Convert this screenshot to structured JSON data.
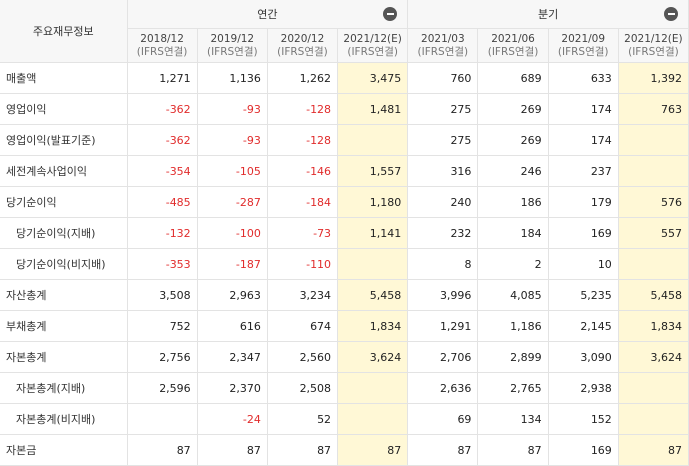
{
  "table": {
    "corner_label": "주요재무정보",
    "groups": [
      {
        "label": "연간",
        "collapse_icon": "minus-circle-icon"
      },
      {
        "label": "분기",
        "collapse_icon": "minus-circle-icon"
      }
    ],
    "periods": [
      {
        "date": "2018/12",
        "basis": "(IFRS연결)"
      },
      {
        "date": "2019/12",
        "basis": "(IFRS연결)"
      },
      {
        "date": "2020/12",
        "basis": "(IFRS연결)"
      },
      {
        "date": "2021/12(E)",
        "basis": "(IFRS연결)"
      },
      {
        "date": "2021/03",
        "basis": "(IFRS연결)"
      },
      {
        "date": "2021/06",
        "basis": "(IFRS연결)"
      },
      {
        "date": "2021/09",
        "basis": "(IFRS연결)"
      },
      {
        "date": "2021/12(E)",
        "basis": "(IFRS연결)"
      }
    ],
    "rows": [
      {
        "label": "매출액",
        "values": [
          "1,271",
          "1,136",
          "1,262",
          "3,475",
          "760",
          "689",
          "633",
          "1,392"
        ]
      },
      {
        "label": "영업이익",
        "values": [
          "-362",
          "-93",
          "-128",
          "1,481",
          "275",
          "269",
          "174",
          "763"
        ]
      },
      {
        "label": "영업이익(발표기준)",
        "values": [
          "-362",
          "-93",
          "-128",
          "",
          "275",
          "269",
          "174",
          ""
        ]
      },
      {
        "label": "세전계속사업이익",
        "values": [
          "-354",
          "-105",
          "-146",
          "1,557",
          "316",
          "246",
          "237",
          ""
        ]
      },
      {
        "label": "당기순이익",
        "values": [
          "-485",
          "-287",
          "-184",
          "1,180",
          "240",
          "186",
          "179",
          "576"
        ]
      },
      {
        "label": "당기순이익(지배)",
        "values": [
          "-132",
          "-100",
          "-73",
          "1,141",
          "232",
          "184",
          "169",
          "557"
        ]
      },
      {
        "label": "당기순이익(비지배)",
        "values": [
          "-353",
          "-187",
          "-110",
          "",
          "8",
          "2",
          "10",
          ""
        ]
      },
      {
        "label": "자산총계",
        "values": [
          "3,508",
          "2,963",
          "3,234",
          "5,458",
          "3,996",
          "4,085",
          "5,235",
          "5,458"
        ]
      },
      {
        "label": "부채총계",
        "values": [
          "752",
          "616",
          "674",
          "1,834",
          "1,291",
          "1,186",
          "2,145",
          "1,834"
        ]
      },
      {
        "label": "자본총계",
        "values": [
          "2,756",
          "2,347",
          "2,560",
          "3,624",
          "2,706",
          "2,899",
          "3,090",
          "3,624"
        ]
      },
      {
        "label": "자본총계(지배)",
        "values": [
          "2,596",
          "2,370",
          "2,508",
          "",
          "2,636",
          "2,765",
          "2,938",
          ""
        ]
      },
      {
        "label": "자본총계(비지배)",
        "values": [
          "",
          "-24",
          "52",
          "",
          "69",
          "134",
          "152",
          ""
        ]
      },
      {
        "label": "자본금",
        "values": [
          "87",
          "87",
          "87",
          "87",
          "87",
          "87",
          "169",
          "87"
        ]
      }
    ]
  }
}
